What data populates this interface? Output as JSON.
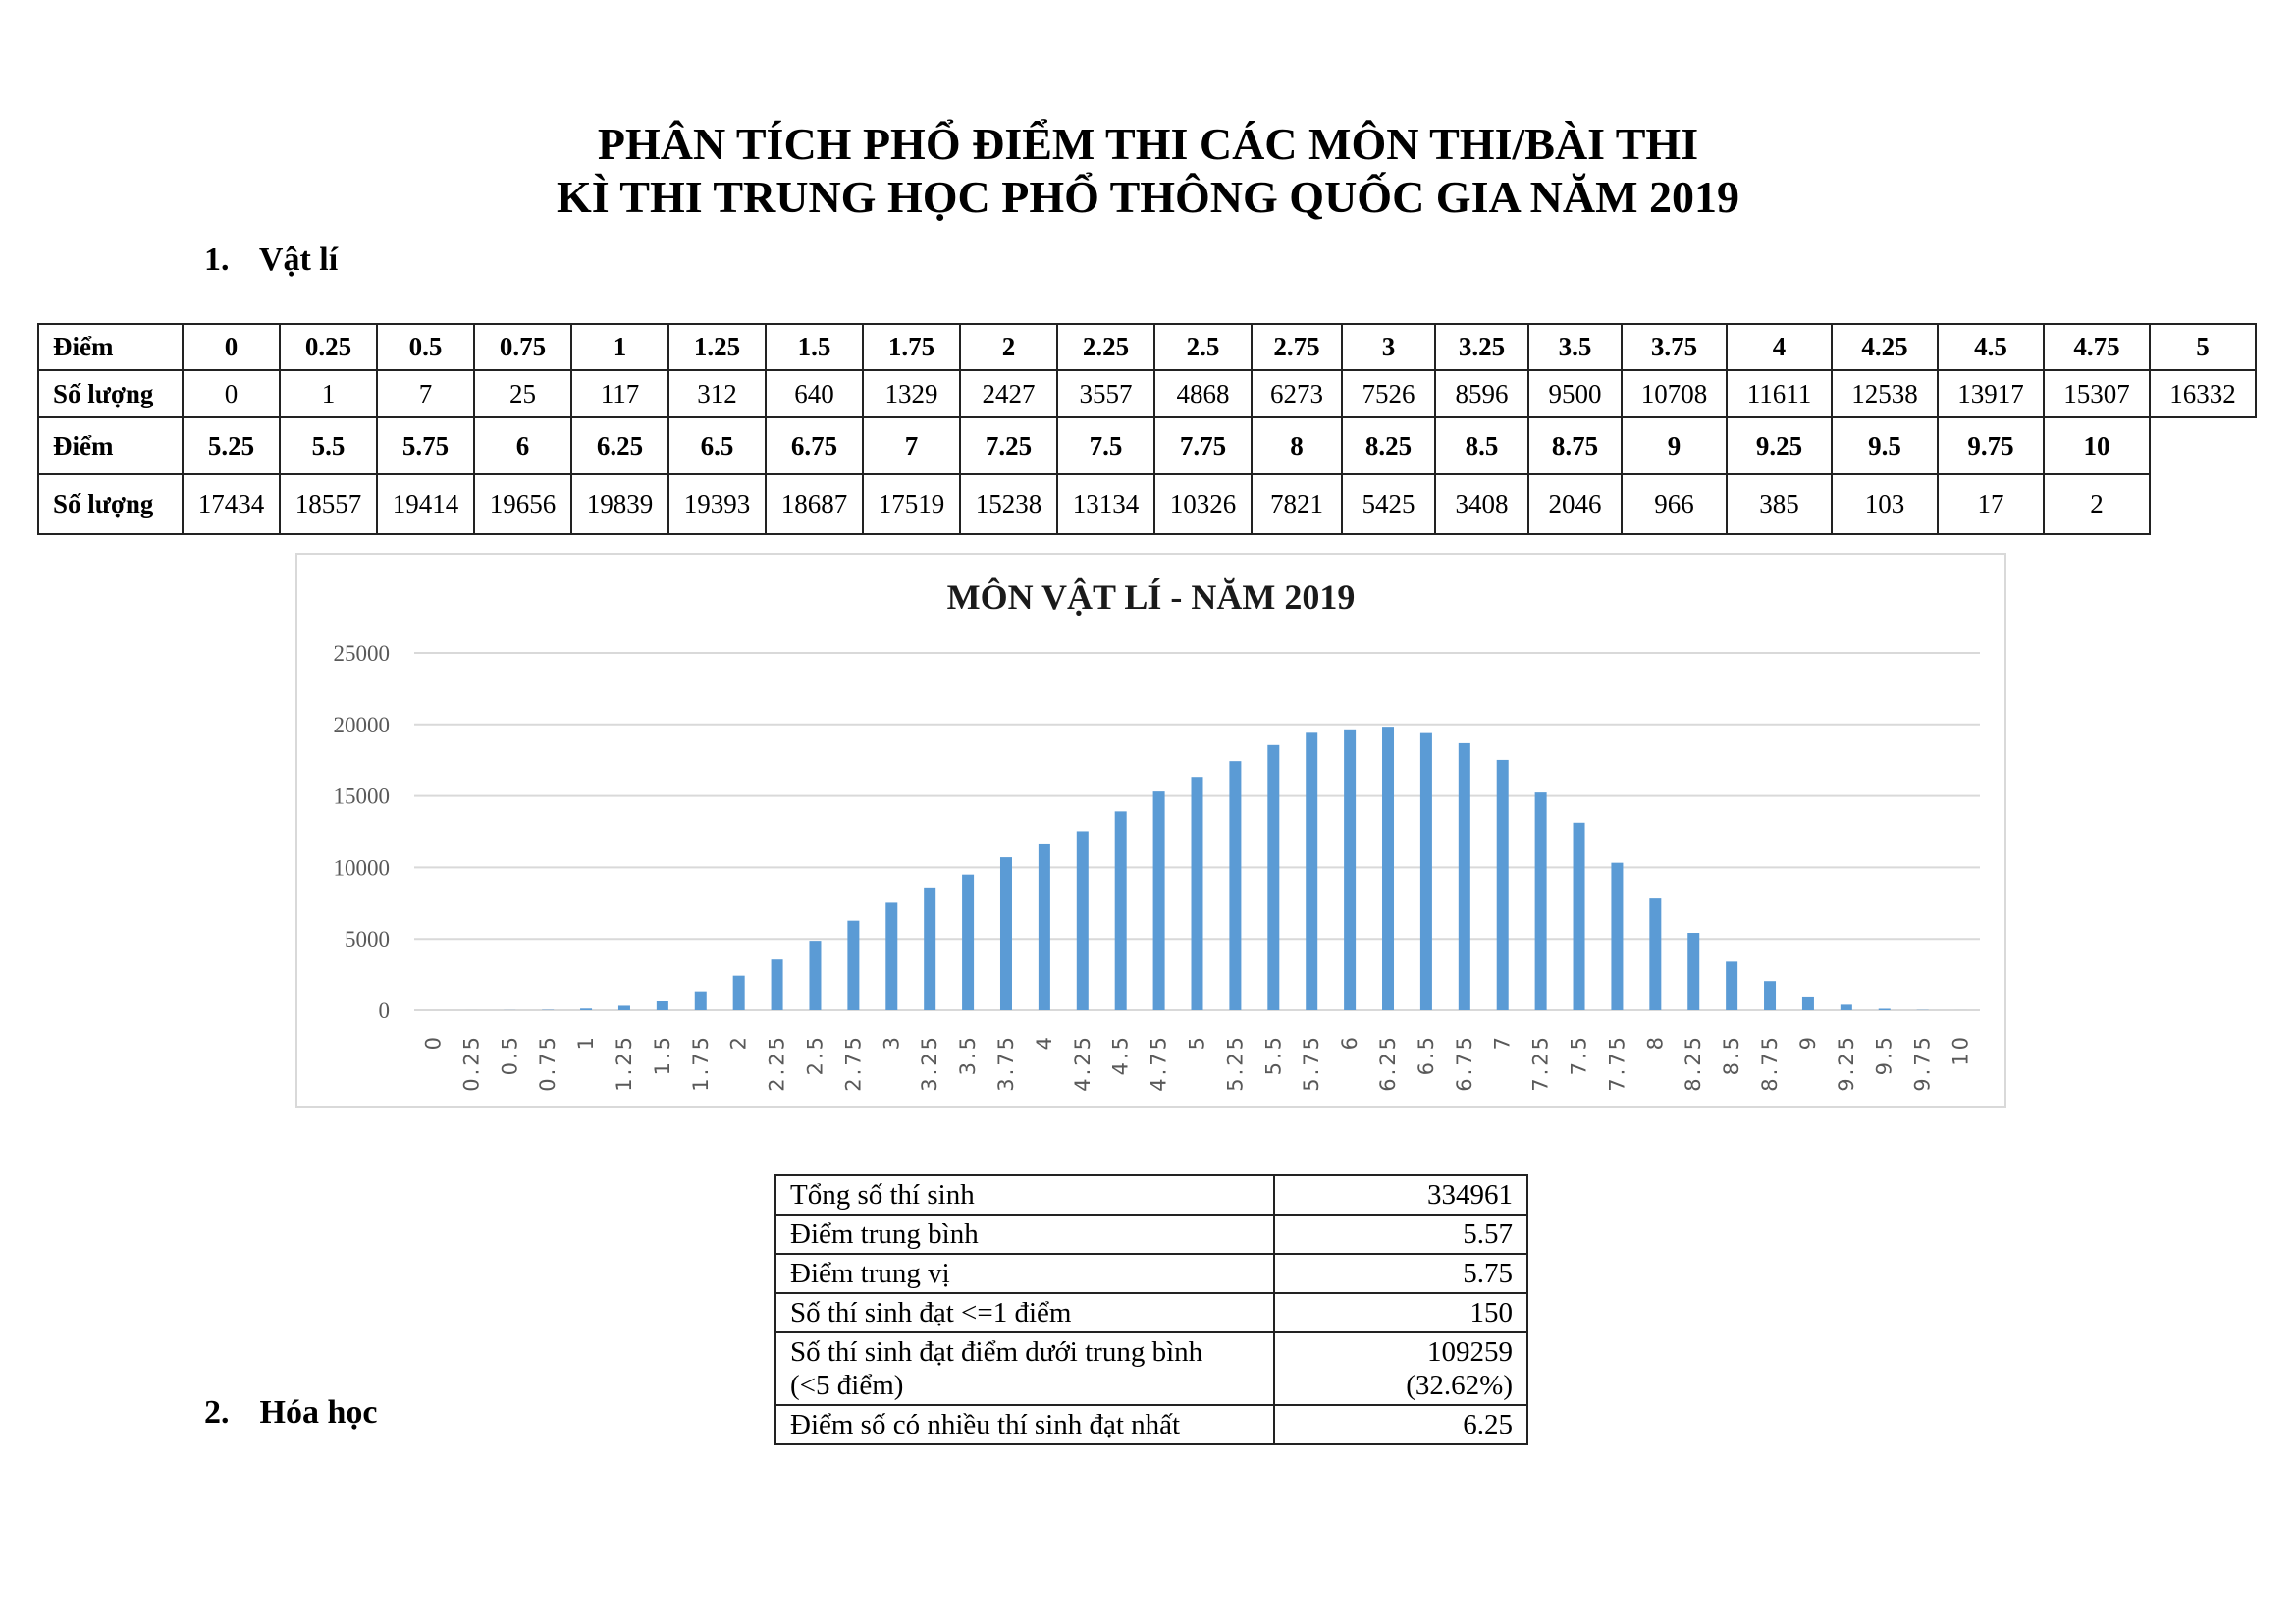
{
  "header": {
    "title_line1": "PHÂN TÍCH PHỔ ĐIỂM THI CÁC MÔN THI/BÀI THI",
    "title_line2": "KÌ THI TRUNG HỌC PHỔ THÔNG QUỐC GIA NĂM 2019"
  },
  "sections": [
    {
      "number": "1.",
      "name": "Vật lí"
    },
    {
      "number": "2.",
      "name": "Hóa học"
    }
  ],
  "score_table": {
    "row_label_score": "Điểm",
    "row_label_count": "Số lượng",
    "block1": {
      "scores": [
        "0",
        "0.25",
        "0.5",
        "0.75",
        "1",
        "1.25",
        "1.5",
        "1.75",
        "2",
        "2.25",
        "2.5",
        "2.75",
        "3",
        "3.25",
        "3.5",
        "3.75",
        "4",
        "4.25",
        "4.5",
        "4.75",
        "5"
      ],
      "counts": [
        "0",
        "1",
        "7",
        "25",
        "117",
        "312",
        "640",
        "1329",
        "2427",
        "3557",
        "4868",
        "6273",
        "7526",
        "8596",
        "9500",
        "10708",
        "11611",
        "12538",
        "13917",
        "15307",
        "16332"
      ]
    },
    "block2": {
      "scores": [
        "5.25",
        "5.5",
        "5.75",
        "6",
        "6.25",
        "6.5",
        "6.75",
        "7",
        "7.25",
        "7.5",
        "7.75",
        "8",
        "8.25",
        "8.5",
        "8.75",
        "9",
        "9.25",
        "9.5",
        "9.75",
        "10"
      ],
      "counts": [
        "17434",
        "18557",
        "19414",
        "19656",
        "19839",
        "19393",
        "18687",
        "17519",
        "15238",
        "13134",
        "10326",
        "7821",
        "5425",
        "3408",
        "2046",
        "966",
        "385",
        "103",
        "17",
        "2"
      ]
    }
  },
  "chart_data": {
    "type": "bar",
    "title": "MÔN VẬT LÍ - NĂM 2019",
    "xlabel": "",
    "ylabel": "",
    "ylim": [
      0,
      25000
    ],
    "yticks": [
      0,
      5000,
      10000,
      15000,
      20000,
      25000
    ],
    "grid": true,
    "legend": "none",
    "bar_color": "#5b9bd5",
    "categories": [
      "0",
      "0.25",
      "0.5",
      "0.75",
      "1",
      "1.25",
      "1.5",
      "1.75",
      "2",
      "2.25",
      "2.5",
      "2.75",
      "3",
      "3.25",
      "3.5",
      "3.75",
      "4",
      "4.25",
      "4.5",
      "4.75",
      "5",
      "5.25",
      "5.5",
      "5.75",
      "6",
      "6.25",
      "6.5",
      "6.75",
      "7",
      "7.25",
      "7.5",
      "7.75",
      "8",
      "8.25",
      "8.5",
      "8.75",
      "9",
      "9.25",
      "9.5",
      "9.75",
      "10"
    ],
    "values": [
      0,
      1,
      7,
      25,
      117,
      312,
      640,
      1329,
      2427,
      3557,
      4868,
      6273,
      7526,
      8596,
      9500,
      10708,
      11611,
      12538,
      13917,
      15307,
      16332,
      17434,
      18557,
      19414,
      19656,
      19839,
      19393,
      18687,
      17519,
      15238,
      13134,
      10326,
      7821,
      5425,
      3408,
      2046,
      966,
      385,
      103,
      17,
      2
    ]
  },
  "summary": [
    {
      "label": "Tổng số thí sinh",
      "value": "334961"
    },
    {
      "label": "Điểm trung bình",
      "value": "5.57"
    },
    {
      "label": "Điểm trung vị",
      "value": "5.75"
    },
    {
      "label": "Số thí sinh đạt <=1 điểm",
      "value": "150"
    },
    {
      "label": "Số thí sinh đạt điểm dưới trung bình",
      "label2": "(<5 điểm)",
      "value": "109259",
      "value2": "(32.62%)"
    },
    {
      "label": "Điểm số có nhiều thí sinh đạt nhất",
      "value": "6.25"
    }
  ]
}
